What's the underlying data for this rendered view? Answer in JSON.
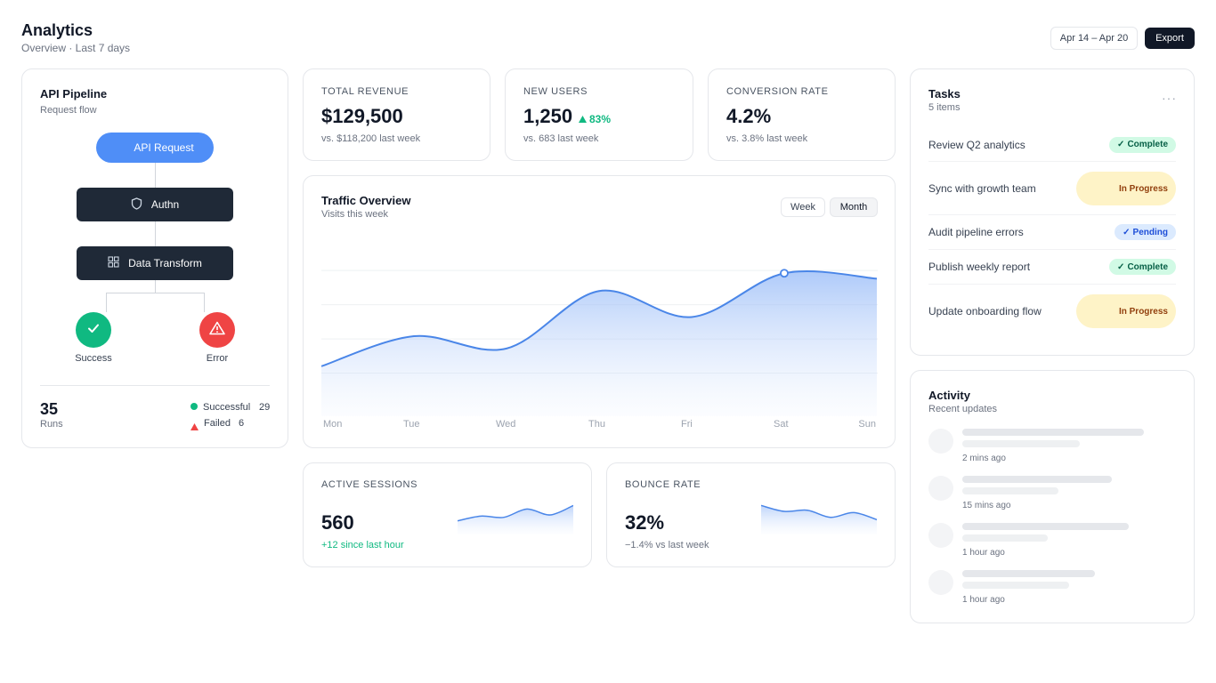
{
  "header": {
    "title": "Analytics",
    "subtitle": "Overview · Last 7 days",
    "date_range": "Apr 14 – Apr 20",
    "export_label": "Export"
  },
  "pipeline": {
    "title": "API Pipeline",
    "subtitle": "Request flow",
    "nodes": {
      "request": "API Request",
      "auth": "Authn",
      "transform": "Data Transform",
      "success": "Success",
      "error": "Error"
    },
    "runs_value": "35",
    "runs_label": "Runs",
    "legend": {
      "successful_label": "Successful",
      "successful_count": "29",
      "failed_label": "Failed",
      "failed_count": "6"
    },
    "colors": {
      "request": "#4f8ef7",
      "success": "#10b981",
      "error": "#ef4444",
      "node": "#1f2937"
    }
  },
  "kpis": {
    "revenue": {
      "label": "TOTAL REVENUE",
      "value": "$129,500",
      "sub": "vs. $118,200 last week"
    },
    "users": {
      "label": "NEW USERS",
      "value": "1,250",
      "delta": "83%",
      "sub": "vs. 683 last week"
    },
    "conversion": {
      "label": "CONVERSION RATE",
      "value": "4.2%",
      "sub": "vs. 3.8% last week"
    }
  },
  "traffic": {
    "title": "Traffic Overview",
    "subtitle": "Visits this week",
    "toggle": {
      "week": "Week",
      "month": "Month"
    },
    "chart_data": {
      "type": "area",
      "categories": [
        "Mon",
        "Tue",
        "Wed",
        "Thu",
        "Fri",
        "Sat",
        "Sun"
      ],
      "values": [
        30,
        52,
        43,
        85,
        66,
        98,
        94
      ],
      "ylim": [
        0,
        130
      ],
      "grid": true,
      "highlight_index": 5
    }
  },
  "sessions": {
    "label": "ACTIVE SESSIONS",
    "value": "560",
    "sub": "+12 since last hour",
    "spark": {
      "type": "area",
      "values": [
        4,
        8,
        7,
        14,
        9,
        17
      ]
    }
  },
  "bounce": {
    "label": "BOUNCE RATE",
    "value": "32%",
    "sub": "−1.4% vs last week",
    "spark": {
      "type": "area",
      "values": [
        17,
        12,
        13,
        7,
        11,
        5
      ]
    }
  },
  "tasks": {
    "title": "Tasks",
    "count": "5 items",
    "menu": "···",
    "items": [
      {
        "label": "Review Q2 analytics",
        "status": "Complete",
        "mark": "✓"
      },
      {
        "label": "Sync with growth team",
        "status": "In Progress",
        "mark": ""
      },
      {
        "label": "Audit pipeline errors",
        "status": "Pending",
        "mark": "✓"
      },
      {
        "label": "Publish weekly report",
        "status": "Complete",
        "mark": "✓"
      },
      {
        "label": "Update onboarding flow",
        "status": "In Progress",
        "mark": ""
      }
    ]
  },
  "activity": {
    "title": "Activity",
    "subtitle": "Recent updates",
    "items": [
      {
        "time": "2 mins ago"
      },
      {
        "time": "15 mins ago"
      },
      {
        "time": "1 hour ago"
      },
      {
        "time": "1 hour ago"
      }
    ]
  }
}
